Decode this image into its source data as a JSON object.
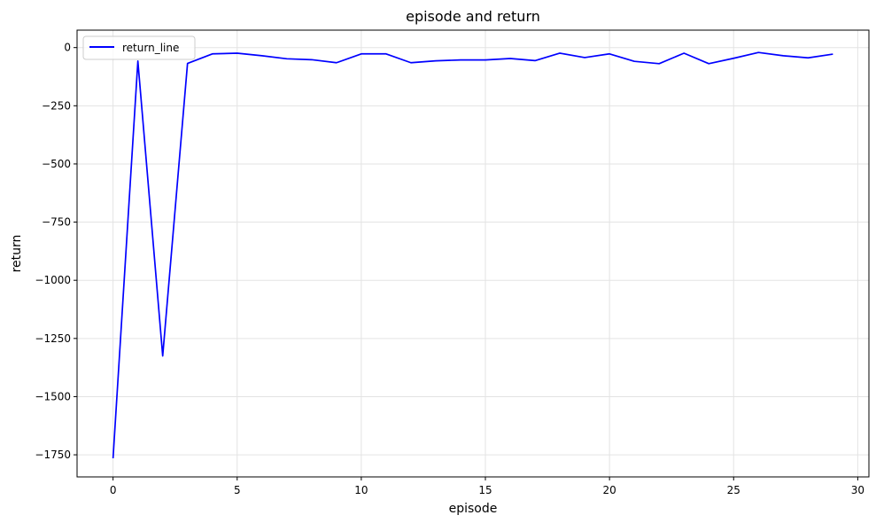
{
  "chart_data": {
    "type": "line",
    "title": "episode and return",
    "xlabel": "episode",
    "ylabel": "return",
    "xlim": [
      -1.45,
      30.45
    ],
    "ylim": [
      -1845,
      75
    ],
    "xticks": [
      0,
      5,
      10,
      15,
      20,
      25,
      30
    ],
    "yticks": [
      0,
      -250,
      -500,
      -750,
      -1000,
      -1250,
      -1500,
      -1750
    ],
    "grid": true,
    "legend_position": "top-left",
    "series": [
      {
        "name": "return_line",
        "color": "#0000ff",
        "x": [
          0,
          1,
          2,
          3,
          4,
          5,
          6,
          7,
          8,
          9,
          10,
          11,
          12,
          13,
          14,
          15,
          16,
          17,
          18,
          19,
          20,
          21,
          22,
          23,
          24,
          25,
          26,
          27,
          28,
          29
        ],
        "y": [
          -1765,
          -58,
          -1325,
          -68,
          -27,
          -24,
          -35,
          -48,
          -52,
          -65,
          -27,
          -27,
          -65,
          -57,
          -53,
          -53,
          -47,
          -56,
          -24,
          -43,
          -27,
          -59,
          -69,
          -24,
          -69,
          -46,
          -21,
          -35,
          -44,
          -28
        ]
      }
    ]
  }
}
